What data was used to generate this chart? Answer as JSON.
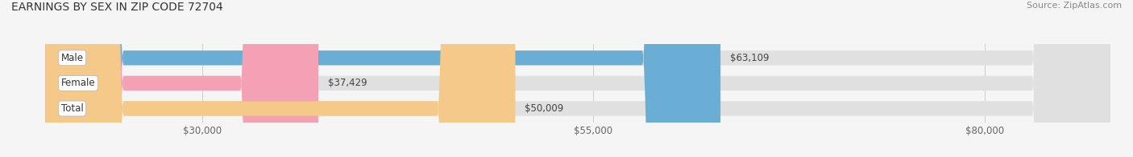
{
  "title": "EARNINGS BY SEX IN ZIP CODE 72704",
  "source": "Source: ZipAtlas.com",
  "categories": [
    "Male",
    "Female",
    "Total"
  ],
  "values": [
    63109,
    37429,
    50009
  ],
  "bar_colors": [
    "#6aaed6",
    "#f4a0b5",
    "#f5c98a"
  ],
  "bar_bg_color": "#e0e0e0",
  "xlim_min": 20000,
  "xlim_max": 88000,
  "xticks": [
    30000,
    55000,
    80000
  ],
  "xtick_labels": [
    "$30,000",
    "$55,000",
    "$80,000"
  ],
  "value_labels": [
    "$63,109",
    "$37,429",
    "$50,009"
  ],
  "title_fontsize": 10,
  "bar_height": 0.58,
  "figsize": [
    14.06,
    1.96
  ],
  "dpi": 100,
  "background_color": "#f5f5f5"
}
